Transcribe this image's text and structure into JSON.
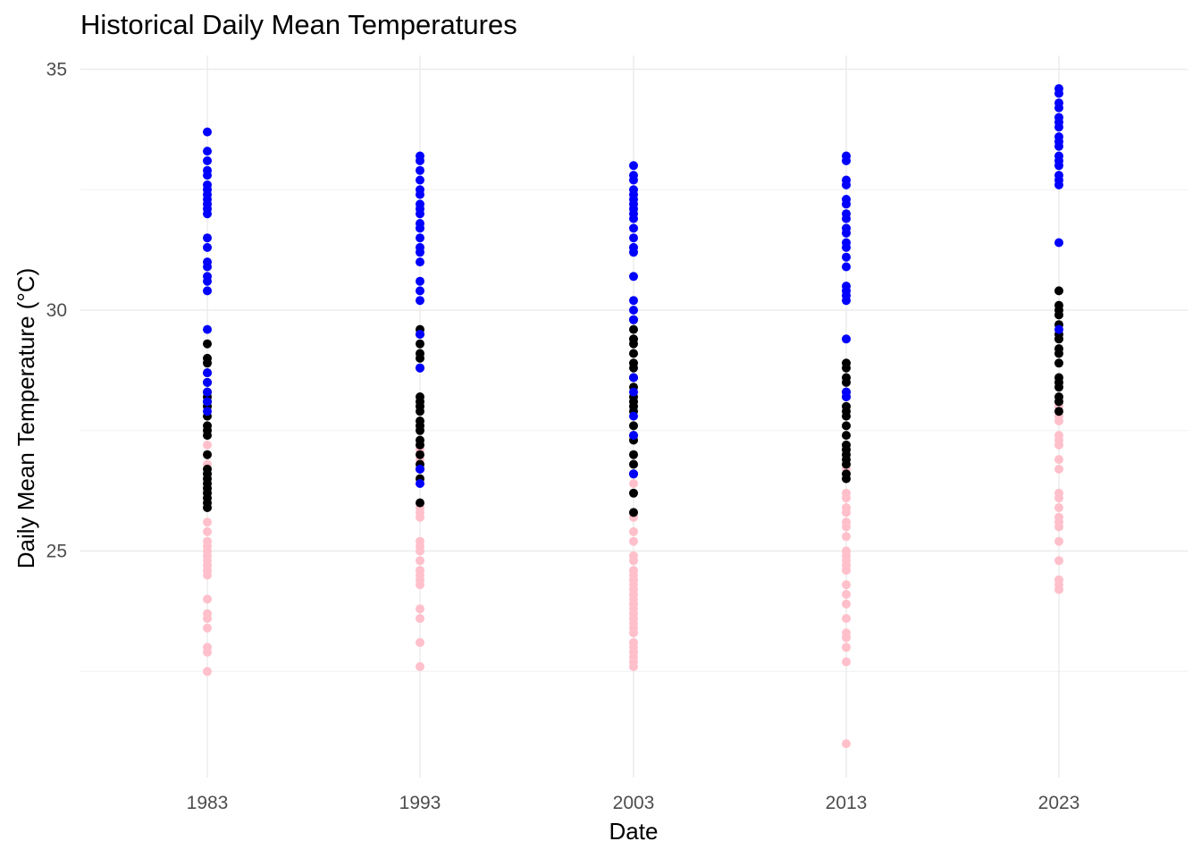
{
  "chart_data": {
    "type": "scatter",
    "title": "Historical Daily Mean Temperatures",
    "xlabel": "Date",
    "ylabel": "Daily Mean Temperature (°C)",
    "x_ticks": [
      "1983",
      "1993",
      "2003",
      "2013",
      "2023"
    ],
    "y_ticks": [
      25,
      30,
      35
    ],
    "ylim": [
      20.3,
      35.3
    ],
    "grid": true,
    "legend": "none",
    "colors": {
      "hot": "#0000ff",
      "mid": "#000000",
      "cool": "#ffc0cb"
    },
    "groups": [
      {
        "x": "1983",
        "hot": [
          33.7,
          33.3,
          33.1,
          32.9,
          32.8,
          32.6,
          32.5,
          32.4,
          32.3,
          32.2,
          32.1,
          32.0,
          31.5,
          31.3,
          31.0,
          30.9,
          30.7,
          30.6,
          30.4,
          29.6,
          28.7,
          28.5,
          28.3,
          28.1,
          27.9
        ],
        "mid": [
          29.3,
          29.0,
          28.9,
          28.7,
          28.5,
          28.3,
          28.2,
          28.1,
          28.0,
          27.8,
          27.6,
          27.5,
          27.4,
          27.0,
          26.7,
          26.6,
          26.5,
          26.4,
          26.3,
          26.2,
          26.1,
          26.0,
          25.9
        ],
        "cool": [
          27.2,
          27.0,
          26.8,
          26.5,
          26.3,
          26.1,
          25.9,
          25.6,
          25.4,
          25.2,
          25.1,
          25.0,
          24.9,
          24.8,
          24.7,
          24.6,
          24.5,
          24.0,
          23.7,
          23.6,
          23.4,
          23.0,
          22.9,
          22.5
        ]
      },
      {
        "x": "1993",
        "hot": [
          33.2,
          33.1,
          32.9,
          32.7,
          32.5,
          32.4,
          32.2,
          32.1,
          32.0,
          31.8,
          31.7,
          31.5,
          31.3,
          31.2,
          31.0,
          30.6,
          30.4,
          30.2,
          29.5,
          28.8,
          26.7,
          26.4
        ],
        "mid": [
          29.6,
          29.5,
          29.3,
          29.1,
          29.0,
          28.8,
          28.2,
          28.1,
          28.0,
          27.9,
          27.7,
          27.6,
          27.5,
          27.3,
          27.2,
          27.0,
          26.8,
          26.7,
          26.5,
          26.0
        ],
        "cool": [
          27.1,
          26.9,
          26.7,
          26.5,
          25.9,
          25.8,
          25.7,
          25.2,
          25.1,
          25.0,
          24.8,
          24.6,
          24.5,
          24.4,
          24.3,
          23.8,
          23.6,
          23.1,
          22.6
        ]
      },
      {
        "x": "2003",
        "hot": [
          33.0,
          32.8,
          32.7,
          32.5,
          32.4,
          32.3,
          32.2,
          32.1,
          32.0,
          31.9,
          31.7,
          31.5,
          31.3,
          31.2,
          30.7,
          30.2,
          30.0,
          29.8,
          28.6,
          28.3,
          27.8,
          27.4,
          26.6
        ],
        "mid": [
          29.8,
          29.6,
          29.4,
          29.3,
          29.1,
          28.9,
          28.8,
          28.6,
          28.4,
          28.2,
          28.1,
          28.0,
          27.9,
          27.6,
          27.4,
          27.3,
          27.0,
          26.8,
          26.6,
          26.2,
          25.8
        ],
        "cool": [
          27.0,
          26.8,
          26.6,
          26.4,
          25.7,
          25.4,
          25.2,
          24.9,
          24.8,
          24.6,
          24.5,
          24.4,
          24.3,
          24.2,
          24.1,
          24.0,
          23.9,
          23.8,
          23.7,
          23.6,
          23.5,
          23.4,
          23.3,
          23.1,
          23.0,
          22.9,
          22.8,
          22.7,
          22.6
        ]
      },
      {
        "x": "2013",
        "hot": [
          33.2,
          33.1,
          32.7,
          32.6,
          32.3,
          32.2,
          32.0,
          31.9,
          31.7,
          31.6,
          31.4,
          31.3,
          31.1,
          30.9,
          30.5,
          30.4,
          30.3,
          30.2,
          29.4,
          28.3,
          28.2
        ],
        "mid": [
          28.9,
          28.8,
          28.6,
          28.5,
          28.3,
          28.2,
          28.0,
          27.9,
          27.8,
          27.6,
          27.4,
          27.2,
          27.1,
          27.0,
          26.9,
          26.8,
          26.6,
          26.5
        ],
        "cool": [
          26.7,
          26.2,
          26.1,
          25.9,
          25.8,
          25.6,
          25.5,
          25.3,
          25.0,
          24.9,
          24.8,
          24.7,
          24.6,
          24.3,
          24.1,
          23.9,
          23.6,
          23.3,
          23.2,
          23.0,
          22.7,
          21.0
        ]
      },
      {
        "x": "2023",
        "hot": [
          34.6,
          34.5,
          34.3,
          34.2,
          34.0,
          33.9,
          33.8,
          33.6,
          33.5,
          33.4,
          33.2,
          33.1,
          33.0,
          32.8,
          32.7,
          32.6,
          31.4,
          29.6
        ],
        "mid": [
          30.4,
          30.1,
          30.0,
          29.9,
          29.7,
          29.5,
          29.4,
          29.2,
          29.1,
          28.9,
          28.6,
          28.5,
          28.4,
          28.2,
          28.1,
          27.9
        ],
        "cool": [
          28.0,
          27.8,
          27.7,
          27.4,
          27.3,
          27.2,
          26.9,
          26.7,
          26.2,
          26.1,
          25.9,
          25.7,
          25.6,
          25.5,
          25.2,
          24.8,
          24.4,
          24.3,
          24.2
        ]
      }
    ]
  }
}
